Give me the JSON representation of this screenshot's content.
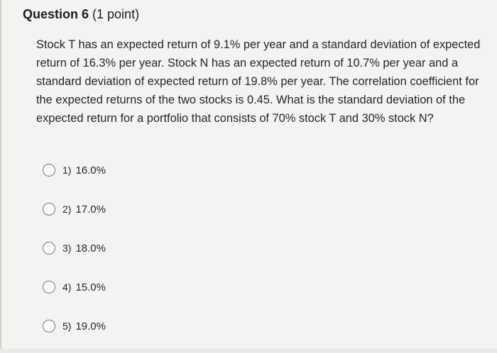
{
  "question": {
    "title": "Question 6",
    "points": "(1 point)",
    "text": "Stock T has an expected return of 9.1% per year and a standard deviation of expected return of 16.3% per year. Stock N has an expected return of 10.7% per year and a standard deviation of expected return of 19.8% per year. The correlation coefficient for the expected returns of the two stocks is 0.45. What is the standard deviation of the expected return for a portfolio that consists of 70% stock T and 30% stock N?"
  },
  "options": [
    {
      "number": "1)",
      "value": "16.0%"
    },
    {
      "number": "2)",
      "value": "17.0%"
    },
    {
      "number": "3)",
      "value": "18.0%"
    },
    {
      "number": "4)",
      "value": "15.0%"
    },
    {
      "number": "5)",
      "value": "19.0%"
    }
  ]
}
